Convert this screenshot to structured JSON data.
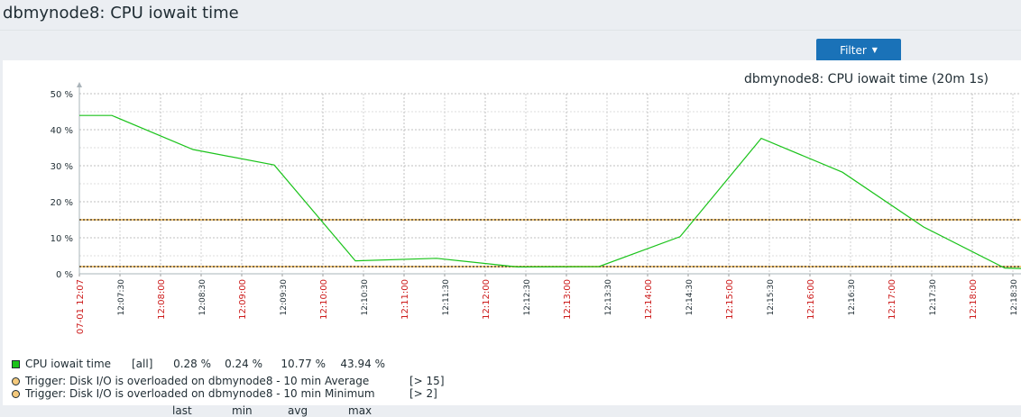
{
  "page": {
    "title": "dbmynode8: CPU iowait time",
    "filter_label": "Filter"
  },
  "colors": {
    "series": "#1bc31b",
    "trigger_line": "#333333",
    "trigger_fill": "#f4c97c",
    "minute_label": "#cc1a1a",
    "grid": "#bfbfbf",
    "filter_bg": "#1a72b8"
  },
  "chart_data": {
    "type": "line",
    "title": "dbmynode8: CPU iowait time (20m 1s)",
    "ylim": [
      0,
      50
    ],
    "y_ticks": [
      "0 %",
      "10 %",
      "20 %",
      "30 %",
      "40 %",
      "50 %"
    ],
    "x_ticks": [
      {
        "label": "07-01 12:07",
        "t": 0,
        "major": true
      },
      {
        "label": "12:07:30",
        "t": 30,
        "major": false
      },
      {
        "label": "12:08:00",
        "t": 60,
        "major": true
      },
      {
        "label": "12:08:30",
        "t": 90,
        "major": false
      },
      {
        "label": "12:09:00",
        "t": 120,
        "major": true
      },
      {
        "label": "12:09:30",
        "t": 150,
        "major": false
      },
      {
        "label": "12:10:00",
        "t": 180,
        "major": true
      },
      {
        "label": "12:10:30",
        "t": 210,
        "major": false
      },
      {
        "label": "12:11:00",
        "t": 240,
        "major": true
      },
      {
        "label": "12:11:30",
        "t": 270,
        "major": false
      },
      {
        "label": "12:12:00",
        "t": 300,
        "major": true
      },
      {
        "label": "12:12:30",
        "t": 330,
        "major": false
      },
      {
        "label": "12:13:00",
        "t": 360,
        "major": true
      },
      {
        "label": "12:13:30",
        "t": 390,
        "major": false
      },
      {
        "label": "12:14:00",
        "t": 420,
        "major": true
      },
      {
        "label": "12:14:30",
        "t": 450,
        "major": false
      },
      {
        "label": "12:15:00",
        "t": 480,
        "major": true
      },
      {
        "label": "12:15:30",
        "t": 510,
        "major": false
      },
      {
        "label": "12:16:00",
        "t": 540,
        "major": true
      },
      {
        "label": "12:16:30",
        "t": 570,
        "major": false
      },
      {
        "label": "12:17:00",
        "t": 600,
        "major": true
      },
      {
        "label": "12:17:30",
        "t": 630,
        "major": false
      },
      {
        "label": "12:18:00",
        "t": 660,
        "major": true
      },
      {
        "label": "12:18:30",
        "t": 690,
        "major": false
      }
    ],
    "x_range_seconds": [
      0,
      1201
    ],
    "series": [
      {
        "name": "CPU iowait time",
        "points": [
          [
            0,
            43.94
          ],
          [
            24,
            43.94
          ],
          [
            84,
            34.5
          ],
          [
            144,
            30.2
          ],
          [
            204,
            3.6
          ],
          [
            264,
            4.3
          ],
          [
            324,
            1.9
          ],
          [
            384,
            2.0
          ],
          [
            444,
            10.3
          ],
          [
            504,
            37.6
          ],
          [
            564,
            28.2
          ],
          [
            624,
            13.0
          ],
          [
            684,
            1.6
          ],
          [
            702,
            1.4
          ]
        ]
      }
    ],
    "thresholds": [
      15,
      2
    ],
    "legend": {
      "headers": [
        "last",
        "min",
        "avg",
        "max"
      ],
      "series_row": {
        "name": "CPU iowait time",
        "func": "[all]",
        "last": "0.28 %",
        "min": "0.24 %",
        "avg": "10.77 %",
        "max": "43.94 %"
      },
      "triggers": [
        {
          "label": "Trigger: Disk I/O is overloaded on dbmynode8 - 10 min Average",
          "cond": "[> 15]"
        },
        {
          "label": "Trigger: Disk I/O is overloaded on dbmynode8 - 10 min Minimum",
          "cond": "[> 2]"
        }
      ]
    }
  }
}
